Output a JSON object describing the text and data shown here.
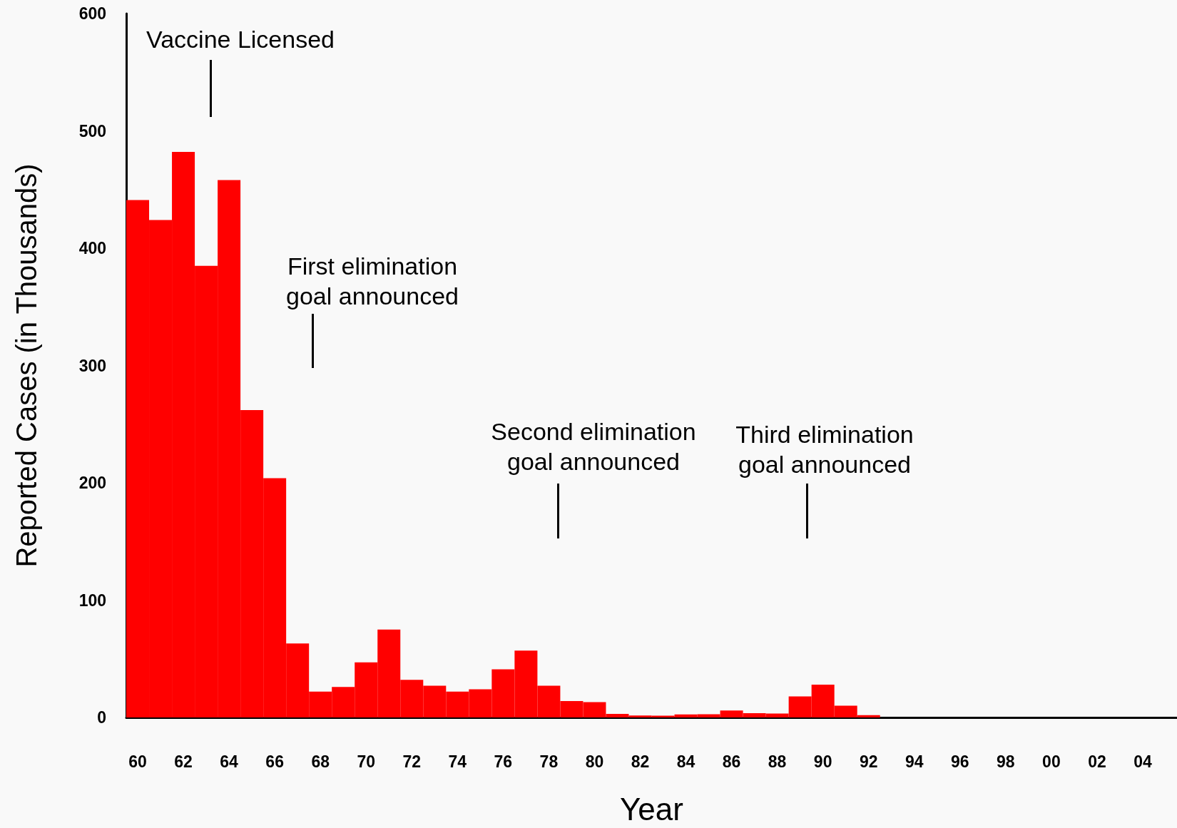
{
  "chart_data": {
    "type": "bar",
    "xlabel": "Year",
    "ylabel": "Reported Cases (in Thousands)",
    "categories": [
      "60",
      null,
      "62",
      null,
      "64",
      null,
      "66",
      null,
      "68",
      null,
      "70",
      null,
      "72",
      null,
      "74",
      null,
      "76",
      null,
      "78",
      null,
      "80",
      null,
      "82",
      null,
      "84",
      null,
      "86",
      null,
      "88",
      null,
      "90",
      null,
      "92",
      null,
      "94",
      null,
      "96",
      null,
      "98",
      null,
      "00",
      null,
      "02",
      null,
      "04",
      null
    ],
    "values": [
      441,
      424,
      482,
      385,
      458,
      262,
      204,
      63,
      22,
      26,
      47,
      75,
      32,
      27,
      22,
      24,
      41,
      57,
      27,
      14,
      13,
      3,
      1.7,
      1.5,
      2.6,
      2.8,
      6,
      3.7,
      3.4,
      18,
      28,
      10,
      2,
      0,
      0,
      0,
      0,
      0,
      0,
      0,
      0,
      0,
      0,
      0,
      0,
      0
    ],
    "color": "#ff0000",
    "ylim": [
      0,
      600
    ],
    "yticks": [
      0,
      100,
      200,
      300,
      400,
      500,
      600
    ],
    "grid": false,
    "annotations": [
      "Vaccine Licensed",
      "First elimination\ngoal announced",
      "Second elimination\ngoal announced",
      "Third elimination\ngoal announced"
    ]
  }
}
